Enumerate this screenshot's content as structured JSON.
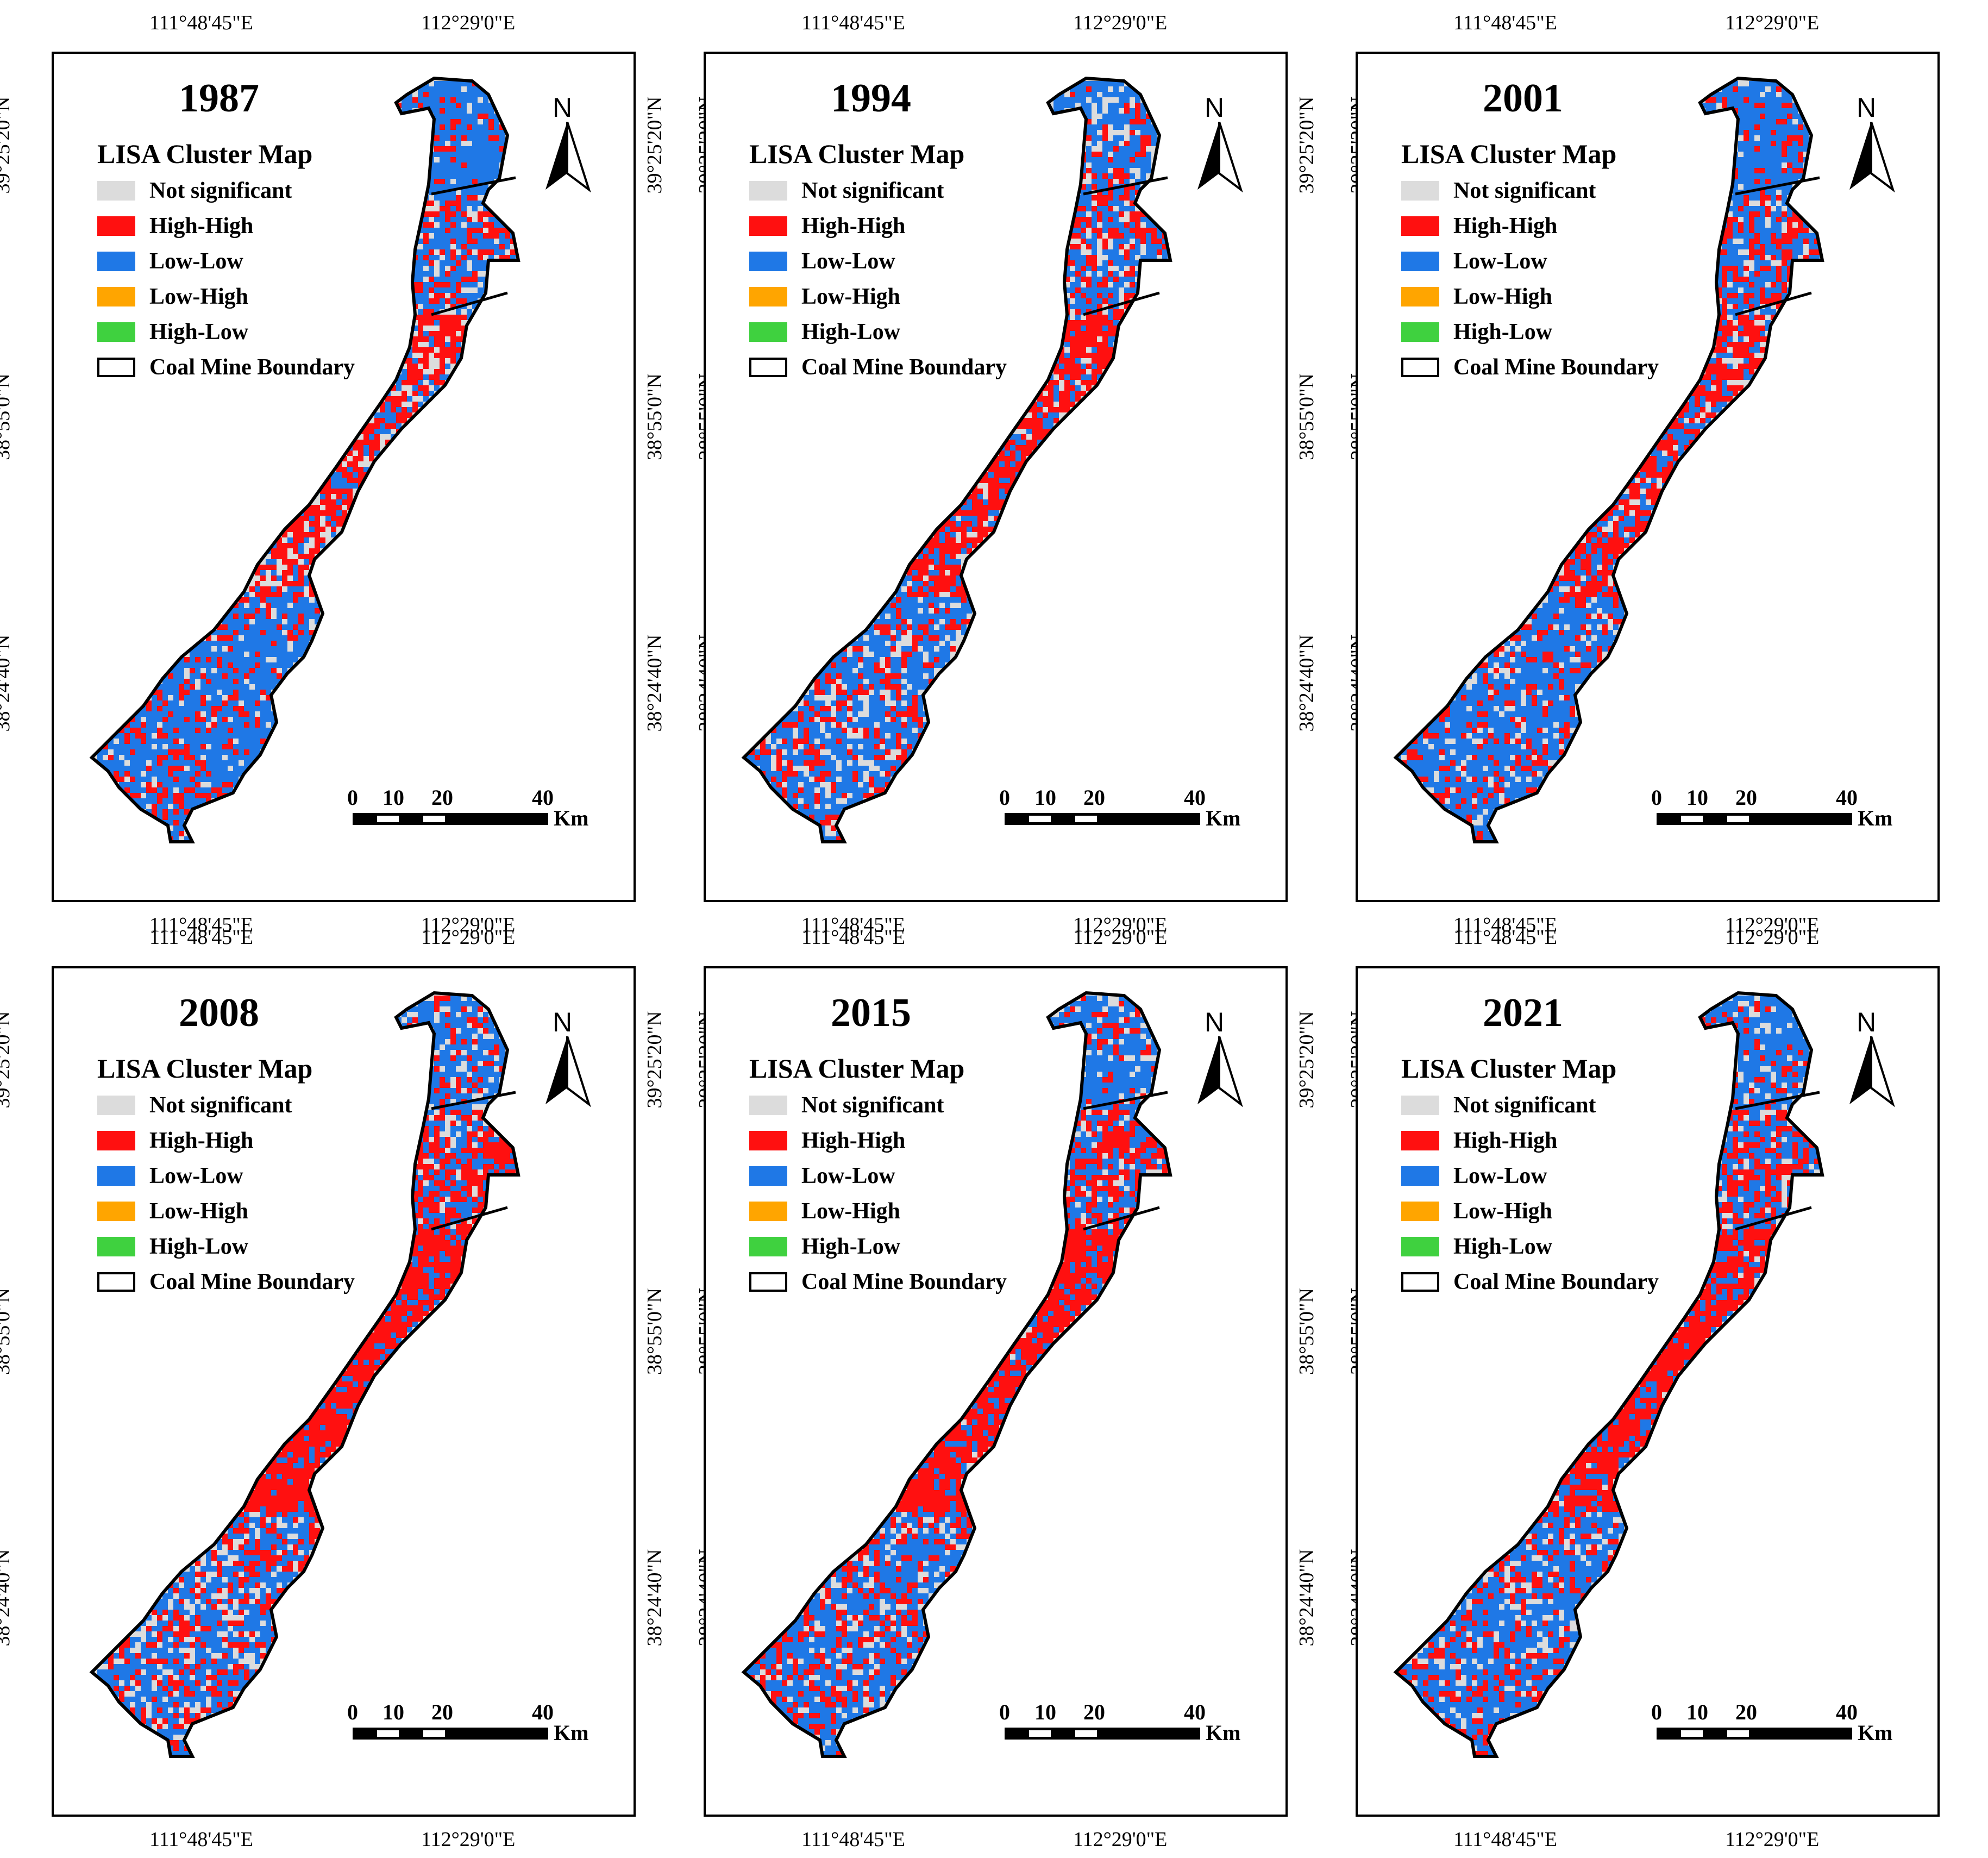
{
  "figure": {
    "lon_labels": [
      "111°48'45\"E",
      "112°29'0\"E"
    ],
    "lat_labels": [
      "39°25'20\"N",
      "38°55'0\"N",
      "38°24'40\"N"
    ],
    "legend": {
      "title": "LISA Cluster Map",
      "items": [
        {
          "label": "Not significant",
          "color": "#dcdcdc"
        },
        {
          "label": "High-High",
          "color": "#ff1010"
        },
        {
          "label": "Low-Low",
          "color": "#1f78e6"
        },
        {
          "label": "Low-High",
          "color": "#ffa500"
        },
        {
          "label": "High-Low",
          "color": "#3fd13f"
        },
        {
          "label": "Coal Mine Boundary",
          "color": "#ffffff"
        }
      ]
    },
    "north_label": "N",
    "scale": {
      "ticks": [
        "0",
        "10",
        "20",
        "40"
      ],
      "unit": "Km"
    },
    "panels": [
      {
        "year": "1987",
        "red": 0.35,
        "blue": 0.55
      },
      {
        "year": "1994",
        "red": 0.42,
        "blue": 0.45
      },
      {
        "year": "2001",
        "red": 0.38,
        "blue": 0.52
      },
      {
        "year": "2008",
        "red": 0.52,
        "blue": 0.4
      },
      {
        "year": "2015",
        "red": 0.48,
        "blue": 0.44
      },
      {
        "year": "2021",
        "red": 0.45,
        "blue": 0.48
      }
    ]
  }
}
